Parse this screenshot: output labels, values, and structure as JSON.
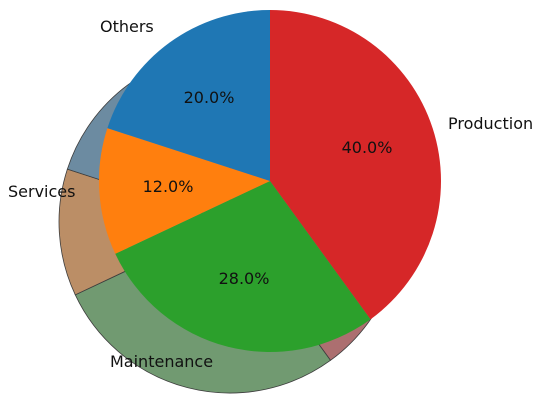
{
  "chart_data": {
    "type": "pie",
    "labels": [
      "Production",
      "Maintenance",
      "Services",
      "Others"
    ],
    "values": [
      40.0,
      28.0,
      12.0,
      20.0
    ],
    "percent_labels": [
      "40.0%",
      "28.0%",
      "12.0%",
      "20.0%"
    ],
    "colors": [
      "#d62728",
      "#2ca02c",
      "#ff7f0e",
      "#1f77b4"
    ],
    "start_angle_deg": 90,
    "direction": "clockwise",
    "shadow": true,
    "legend": "none"
  }
}
